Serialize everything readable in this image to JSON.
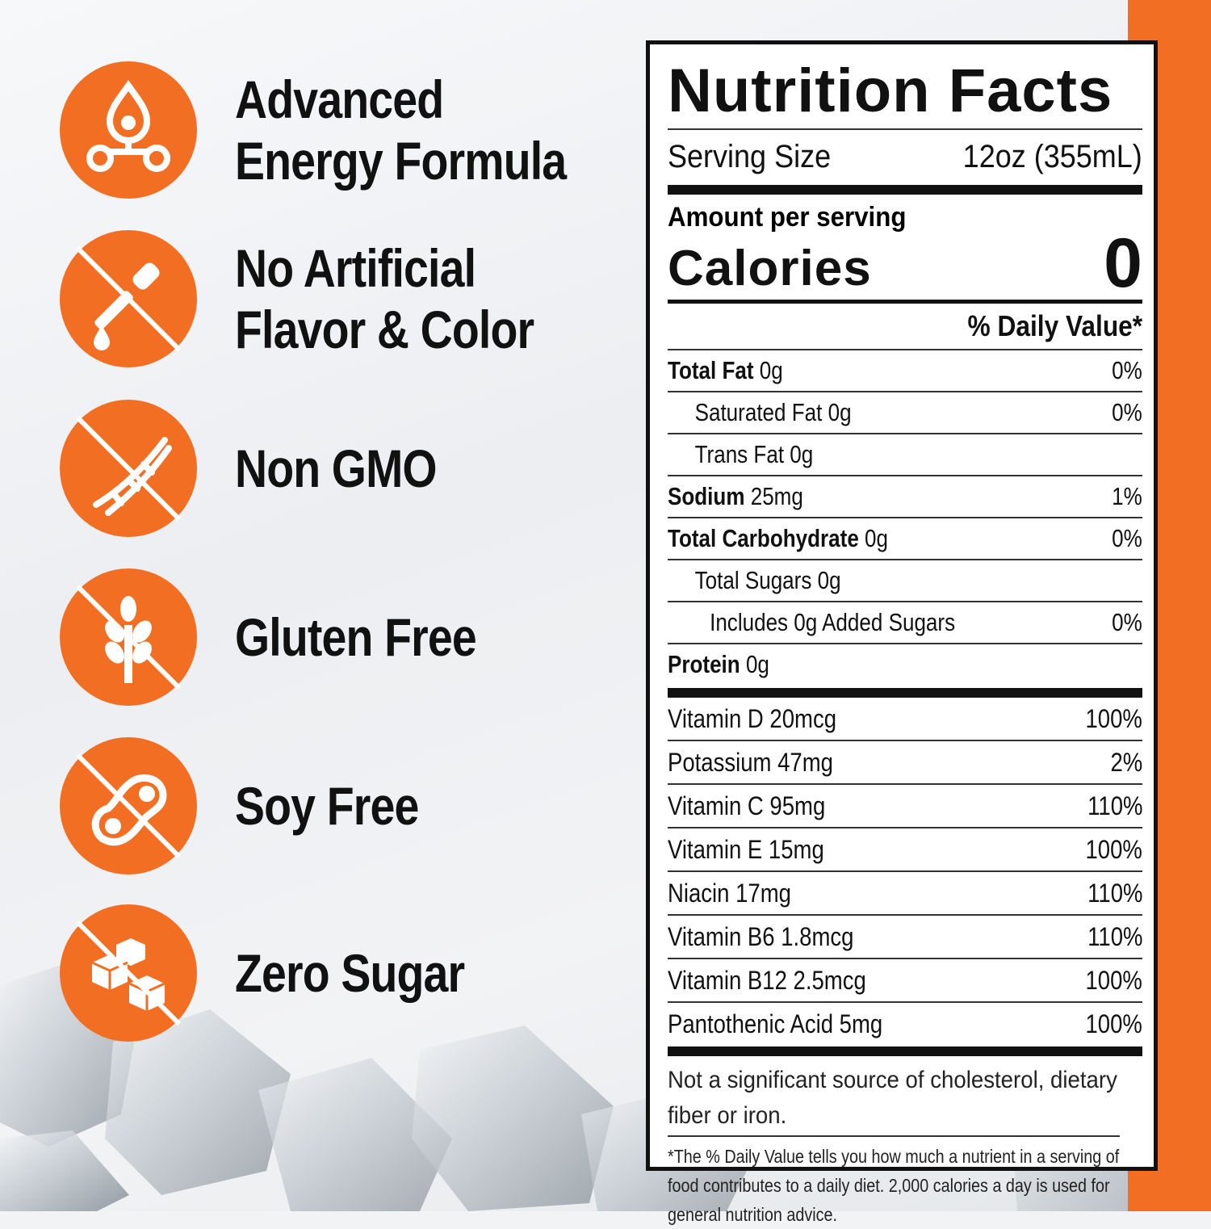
{
  "colors": {
    "accent": "#f26e22",
    "text": "#111111",
    "background": "#f2f3f5"
  },
  "features": [
    {
      "icon": "molecule-drop-icon",
      "lines": [
        "Advanced",
        "Energy Formula"
      ]
    },
    {
      "icon": "no-dropper-icon",
      "lines": [
        "No Artificial",
        "Flavor & Color"
      ]
    },
    {
      "icon": "no-dna-icon",
      "lines": [
        "Non GMO"
      ]
    },
    {
      "icon": "no-wheat-icon",
      "lines": [
        "Gluten Free"
      ]
    },
    {
      "icon": "no-soy-icon",
      "lines": [
        "Soy Free"
      ]
    },
    {
      "icon": "no-sugar-cubes-icon",
      "lines": [
        "Zero Sugar"
      ]
    }
  ],
  "nutrition": {
    "title": "Nutrition Facts",
    "serving_label": "Serving Size",
    "serving_value": "12oz (355mL)",
    "amount_label": "Amount per serving",
    "calories_label": "Calories",
    "calories_value": "0",
    "dv_header": "% Daily Value*",
    "rows": [
      {
        "label_bold": "Total Fat",
        "amount": " 0g",
        "dv": "0%",
        "indent": 0
      },
      {
        "label_bold": "",
        "amount": "Saturated Fat 0g",
        "dv": "0%",
        "indent": 1
      },
      {
        "label_bold": "",
        "amount": "Trans Fat 0g",
        "dv": "",
        "indent": 1
      },
      {
        "label_bold": "Sodium",
        "amount": " 25mg",
        "dv": "1%",
        "indent": 0
      },
      {
        "label_bold": "Total Carbohydrate",
        "amount": " 0g",
        "dv": "0%",
        "indent": 0
      },
      {
        "label_bold": "",
        "amount": "Total Sugars 0g",
        "dv": "",
        "indent": 1
      },
      {
        "label_bold": "",
        "amount": "Includes 0g Added Sugars",
        "dv": "0%",
        "indent": 2
      },
      {
        "label_bold": "Protein",
        "amount": " 0g",
        "dv": "",
        "indent": 0
      }
    ],
    "vitamins": [
      {
        "label": "Vitamin D 20mcg",
        "dv": "100%"
      },
      {
        "label": "Potassium 47mg",
        "dv": "2%"
      },
      {
        "label": "Vitamin C 95mg",
        "dv": "110%"
      },
      {
        "label": "Vitamin E 15mg",
        "dv": "100%"
      },
      {
        "label": "Niacin 17mg",
        "dv": "110%"
      },
      {
        "label": "Vitamin B6 1.8mcg",
        "dv": "110%"
      },
      {
        "label": "Vitamin B12 2.5mcg",
        "dv": "100%"
      },
      {
        "label": "Pantothenic Acid 5mg",
        "dv": "100%"
      }
    ],
    "footnote_main": "Not a significant source of cholesterol, dietary fiber or iron.",
    "footnote_small": "*The % Daily Value tells you how much a nutrient in a serving of food contributes to a daily diet. 2,000 calories a day is used for general nutrition advice."
  }
}
